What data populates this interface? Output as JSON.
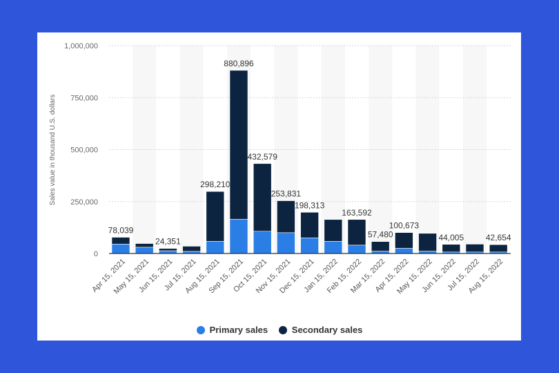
{
  "colors": {
    "background": "#2f55db",
    "primary": "#2a7ee5",
    "secondary": "#0c2440",
    "band": "#f7f7f7",
    "grid": "#d5d5d5"
  },
  "chart_data": {
    "type": "bar",
    "stacked": true,
    "ylabel": "Sales value in thousand U.S. dollars",
    "ylim": [
      0,
      1000000
    ],
    "yticks": [
      "0",
      "250,000",
      "500,000",
      "750,000",
      "1,000,000"
    ],
    "grid": true,
    "legend_position": "bottom",
    "categories": [
      "Apr 15, 2021",
      "May 15, 2021",
      "Jun 15, 2021",
      "Jul 15, 2021",
      "Aug 15, 2021",
      "Sep 15, 2021",
      "Oct 15, 2021",
      "Nov 15, 2021",
      "Dec 15, 2021",
      "Jan 15, 2022",
      "Feb 15, 2022",
      "Mar 15, 2022",
      "Apr 15, 2022",
      "May 15, 2022",
      "Jun 15, 2022",
      "Jul 15, 2022",
      "Aug 15, 2022"
    ],
    "series": [
      {
        "name": "Primary sales",
        "color": "#2a7ee5",
        "values": [
          45000,
          30000,
          13000,
          10000,
          58000,
          165000,
          107000,
          100000,
          75000,
          58000,
          40000,
          11000,
          25000,
          11000,
          7000,
          7000,
          7000
        ]
      },
      {
        "name": "Secondary sales",
        "color": "#0c2440",
        "values": [
          33039,
          18000,
          11351,
          25000,
          240210,
          715896,
          325579,
          153831,
          123313,
          105592,
          123592,
          46480,
          75673,
          86000,
          37005,
          38000,
          35654
        ]
      }
    ],
    "totals_labels": [
      "78,039",
      "",
      "24,351",
      "",
      "298,210",
      "880,896",
      "432,579",
      "253,831",
      "198,313",
      "",
      "163,592",
      "57,480",
      "100,673",
      "",
      "44,005",
      "",
      "42,654"
    ]
  },
  "legend": {
    "primary_label": "Primary sales",
    "secondary_label": "Secondary sales"
  }
}
